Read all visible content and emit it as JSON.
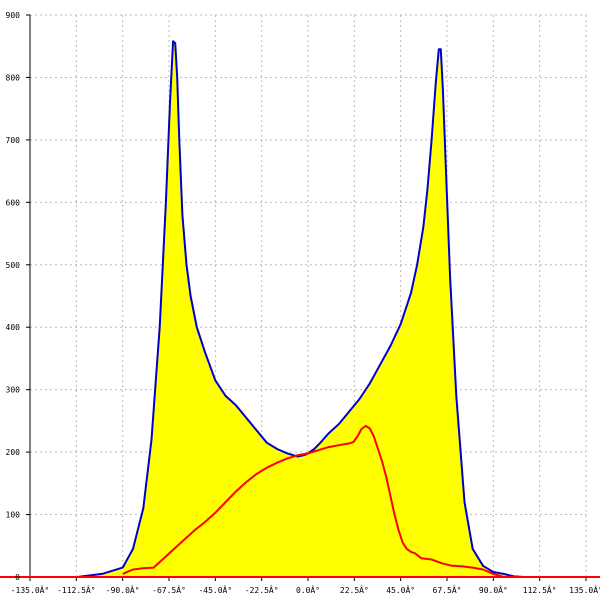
{
  "chart_data": {
    "type": "area",
    "title": "",
    "xlabel": "",
    "ylabel": "",
    "xlim": [
      -135,
      135
    ],
    "ylim": [
      0,
      900
    ],
    "grid": true,
    "x_ticks": [
      -135,
      -112.5,
      -90,
      -67.5,
      -45,
      -22.5,
      0,
      22.5,
      45,
      67.5,
      90,
      112.5,
      135
    ],
    "x_tick_labels": [
      "-135.0Â°",
      "-112.5Â°",
      "-90.0Â°",
      "-67.5Â°",
      "-45.0Â°",
      "-22.5Â°",
      "0.0Â°",
      "22.5Â°",
      "45.0Â°",
      "67.5Â°",
      "90.0Â°",
      "112.5Â°",
      "135.0Â°"
    ],
    "y_ticks": [
      0,
      100,
      200,
      300,
      400,
      500,
      600,
      700,
      800,
      900
    ],
    "y_tick_labels": [
      "0",
      "100",
      "200",
      "300",
      "400",
      "500",
      "600",
      "700",
      "800",
      "900"
    ],
    "baseline_color": "#ff0000",
    "series": [
      {
        "color": "#0000cc",
        "fill": "#ffff00",
        "x": [
          -112,
          -100,
          -90,
          -85,
          -80,
          -76,
          -72,
          -69,
          -67,
          -65.5,
          -64.5,
          -63.5,
          -62.5,
          -61,
          -59,
          -57,
          -54,
          -50,
          -45,
          -40,
          -35,
          -30,
          -25,
          -20,
          -15,
          -10,
          -5,
          -2,
          0,
          3,
          6,
          10,
          15,
          20,
          25,
          30,
          35,
          40,
          45,
          50,
          53,
          56,
          58,
          60,
          62,
          63.5,
          64.5,
          65.5,
          67,
          69,
          72,
          76,
          80,
          85,
          90,
          95,
          100,
          105
        ],
        "y": [
          0,
          5,
          15,
          45,
          110,
          220,
          400,
          600,
          760,
          858,
          855,
          800,
          700,
          580,
          500,
          450,
          400,
          360,
          315,
          290,
          275,
          255,
          235,
          215,
          205,
          198,
          193,
          195,
          198,
          205,
          215,
          230,
          245,
          265,
          285,
          310,
          340,
          370,
          405,
          455,
          500,
          560,
          620,
          700,
          790,
          845,
          845,
          780,
          650,
          480,
          290,
          120,
          45,
          18,
          8,
          5,
          1,
          0
        ]
      },
      {
        "color": "#ff0000",
        "fill": "none",
        "x": [
          -90,
          -85,
          -80,
          -75,
          -70,
          -65,
          -60,
          -55,
          -50,
          -45,
          -40,
          -35,
          -30,
          -25,
          -20,
          -15,
          -10,
          -5,
          0,
          5,
          10,
          15,
          20,
          22,
          24,
          26,
          28,
          30,
          32,
          34,
          36,
          38,
          40,
          42,
          44,
          46,
          48,
          50,
          52,
          55,
          60,
          65,
          70,
          75,
          80,
          85,
          90,
          95
        ],
        "y": [
          5,
          12,
          14,
          15,
          30,
          45,
          60,
          75,
          88,
          103,
          120,
          137,
          152,
          165,
          175,
          183,
          190,
          195,
          198,
          203,
          208,
          211,
          214,
          216,
          225,
          237,
          242,
          238,
          225,
          205,
          185,
          160,
          130,
          100,
          75,
          55,
          45,
          40,
          38,
          30,
          28,
          22,
          18,
          17,
          15,
          12,
          5,
          0
        ]
      }
    ]
  }
}
